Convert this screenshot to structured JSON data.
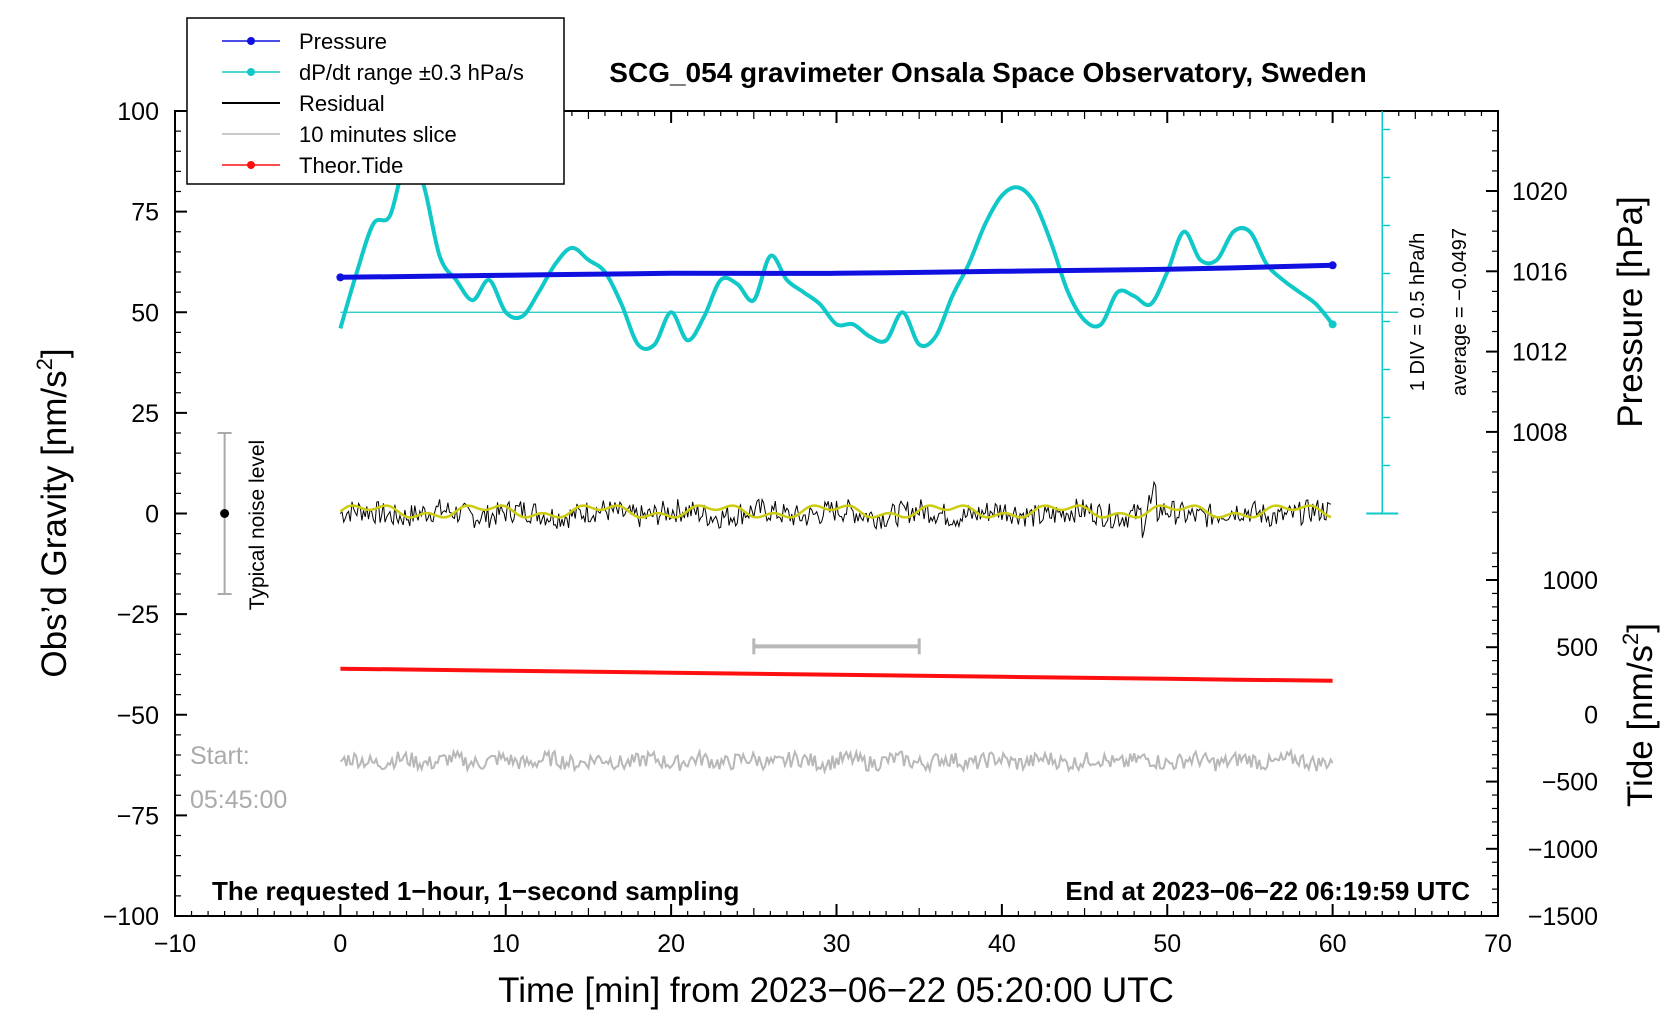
{
  "chart_data": {
    "type": "line",
    "title": "SCG_054 gravimeter Onsala Space Observatory, Sweden",
    "xlabel": "Time [min] from 2023−06−22 05:20:00 UTC",
    "ylabel_left": "Obs’d Gravity [nm/s",
    "ylabel_left_sup": "2",
    "ylabel_left_end": "]",
    "ylabel_pressure": "Pressure [hPa]",
    "ylabel_tide": "Tide [nm/s",
    "ylabel_tide_sup": "2",
    "ylabel_tide_end": "]",
    "xlim": [
      -10,
      70
    ],
    "ylim": [
      -100,
      100
    ],
    "pressure_lim": [
      1004,
      1024
    ],
    "tide_lim": [
      -1500,
      1500
    ],
    "x_ticks": [
      "−10",
      "0",
      "10",
      "20",
      "30",
      "40",
      "50",
      "60",
      "70"
    ],
    "y_ticks": [
      "100",
      "75",
      "50",
      "25",
      "0",
      "−25",
      "−50",
      "−75",
      "−100"
    ],
    "pressure_ticks": [
      "1020",
      "1016",
      "1012",
      "1008"
    ],
    "tide_ticks": [
      "1000",
      "500",
      "0",
      "−500",
      "−1000",
      "−1500"
    ],
    "legend": [
      {
        "label": "Pressure",
        "color": "#1010e0",
        "marker": true
      },
      {
        "label": "dP/dt range ±0.3 hPa/s",
        "color": "#10c8c8",
        "marker": true
      },
      {
        "label": "Residual",
        "color": "#000000",
        "marker": false
      },
      {
        "label": "10 minutes slice",
        "color": "#b8b8b8",
        "marker": false
      },
      {
        "label": "Theor.Tide",
        "color": "#ff1010",
        "marker": true
      }
    ],
    "series": [
      {
        "name": "Pressure",
        "axis": "pressure",
        "x": [
          0,
          10,
          20,
          30,
          40,
          50,
          60
        ],
        "values": [
          1015.7,
          1015.8,
          1015.9,
          1015.9,
          1016.0,
          1016.1,
          1016.3
        ]
      },
      {
        "name": "dP/dt",
        "axis": "gravity",
        "x": [
          0,
          1,
          2,
          3,
          4,
          5,
          6,
          7,
          8,
          9,
          10,
          11,
          12,
          13,
          14,
          15,
          16,
          17,
          18,
          19,
          20,
          21,
          22,
          23,
          24,
          25,
          26,
          27,
          28,
          29,
          30,
          31,
          32,
          33,
          34,
          35,
          36,
          37,
          38,
          39,
          40,
          41,
          42,
          43,
          44,
          45,
          46,
          47,
          48,
          49,
          50,
          51,
          52,
          53,
          54,
          55,
          56,
          57,
          58,
          59,
          60
        ],
        "values": [
          46,
          60,
          72,
          74,
          88,
          82,
          64,
          58,
          53,
          58,
          50,
          49,
          55,
          62,
          66,
          63,
          60,
          52,
          42,
          42,
          50,
          43,
          49,
          58,
          57,
          53,
          64,
          58,
          55,
          52,
          47,
          47,
          44,
          43,
          50,
          42,
          44,
          54,
          62,
          72,
          79,
          81,
          77,
          67,
          55,
          48,
          47,
          55,
          54,
          52,
          60,
          70,
          63,
          63,
          70,
          70,
          62,
          58,
          55,
          52,
          47
        ]
      },
      {
        "name": "Residual",
        "axis": "gravity",
        "x": [
          0,
          60
        ],
        "values": [
          0,
          0
        ]
      },
      {
        "name": "Theor.Tide",
        "axis": "tide",
        "x": [
          0,
          10,
          20,
          30,
          40,
          50,
          60
        ],
        "values": [
          340,
          325,
          310,
          295,
          280,
          265,
          250
        ]
      }
    ],
    "dpdt_reference_level": 50,
    "slice_x": [
      25,
      35
    ],
    "slice_y": -33,
    "scale_bar_note": "1 DIV = 0.5 hPa/h",
    "average_note": "average = −0.0497",
    "noise_label": "Typical noise level",
    "noise_range": [
      -20,
      20
    ],
    "start_label_1": "Start:",
    "start_label_2": "05:45:00",
    "bottom_left_note": "The requested 1−hour, 1−second sampling",
    "bottom_right_note": "End at 2023−06−22 06:19:59 UTC"
  }
}
